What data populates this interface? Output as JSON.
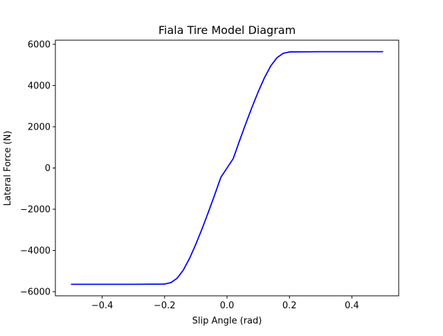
{
  "chart_data": {
    "type": "line",
    "title": "Fiala Tire Model Diagram",
    "xlabel": "Slip Angle (rad)",
    "ylabel": "Lateral Force (N)",
    "xlim": [
      -0.55,
      0.55
    ],
    "ylim": [
      -6200,
      6200
    ],
    "xticks": [
      -0.4,
      -0.2,
      0.0,
      0.2,
      0.4
    ],
    "xtick_labels": [
      "−0.4",
      "−0.2",
      "0.0",
      "0.2",
      "0.4"
    ],
    "yticks": [
      -6000,
      -4000,
      -2000,
      0,
      2000,
      4000,
      6000
    ],
    "ytick_labels": [
      "−6000",
      "−4000",
      "−2000",
      "0",
      "2000",
      "4000",
      "6000"
    ],
    "grid": false,
    "series": [
      {
        "color": "#0000ff",
        "x": [
          -0.5,
          -0.4,
          -0.3,
          -0.2,
          -0.18,
          -0.16,
          -0.14,
          -0.12,
          -0.1,
          -0.08,
          -0.06,
          -0.04,
          -0.02,
          0.0,
          0.02,
          0.04,
          0.06,
          0.08,
          0.1,
          0.12,
          0.14,
          0.16,
          0.18,
          0.2,
          0.3,
          0.4,
          0.5
        ],
        "y": [
          -5640,
          -5640,
          -5640,
          -5630,
          -5560,
          -5350,
          -4950,
          -4380,
          -3700,
          -2950,
          -2150,
          -1320,
          -460,
          0,
          460,
          1320,
          2150,
          2950,
          3700,
          4380,
          4950,
          5350,
          5560,
          5630,
          5640,
          5640,
          5640
        ]
      }
    ]
  }
}
